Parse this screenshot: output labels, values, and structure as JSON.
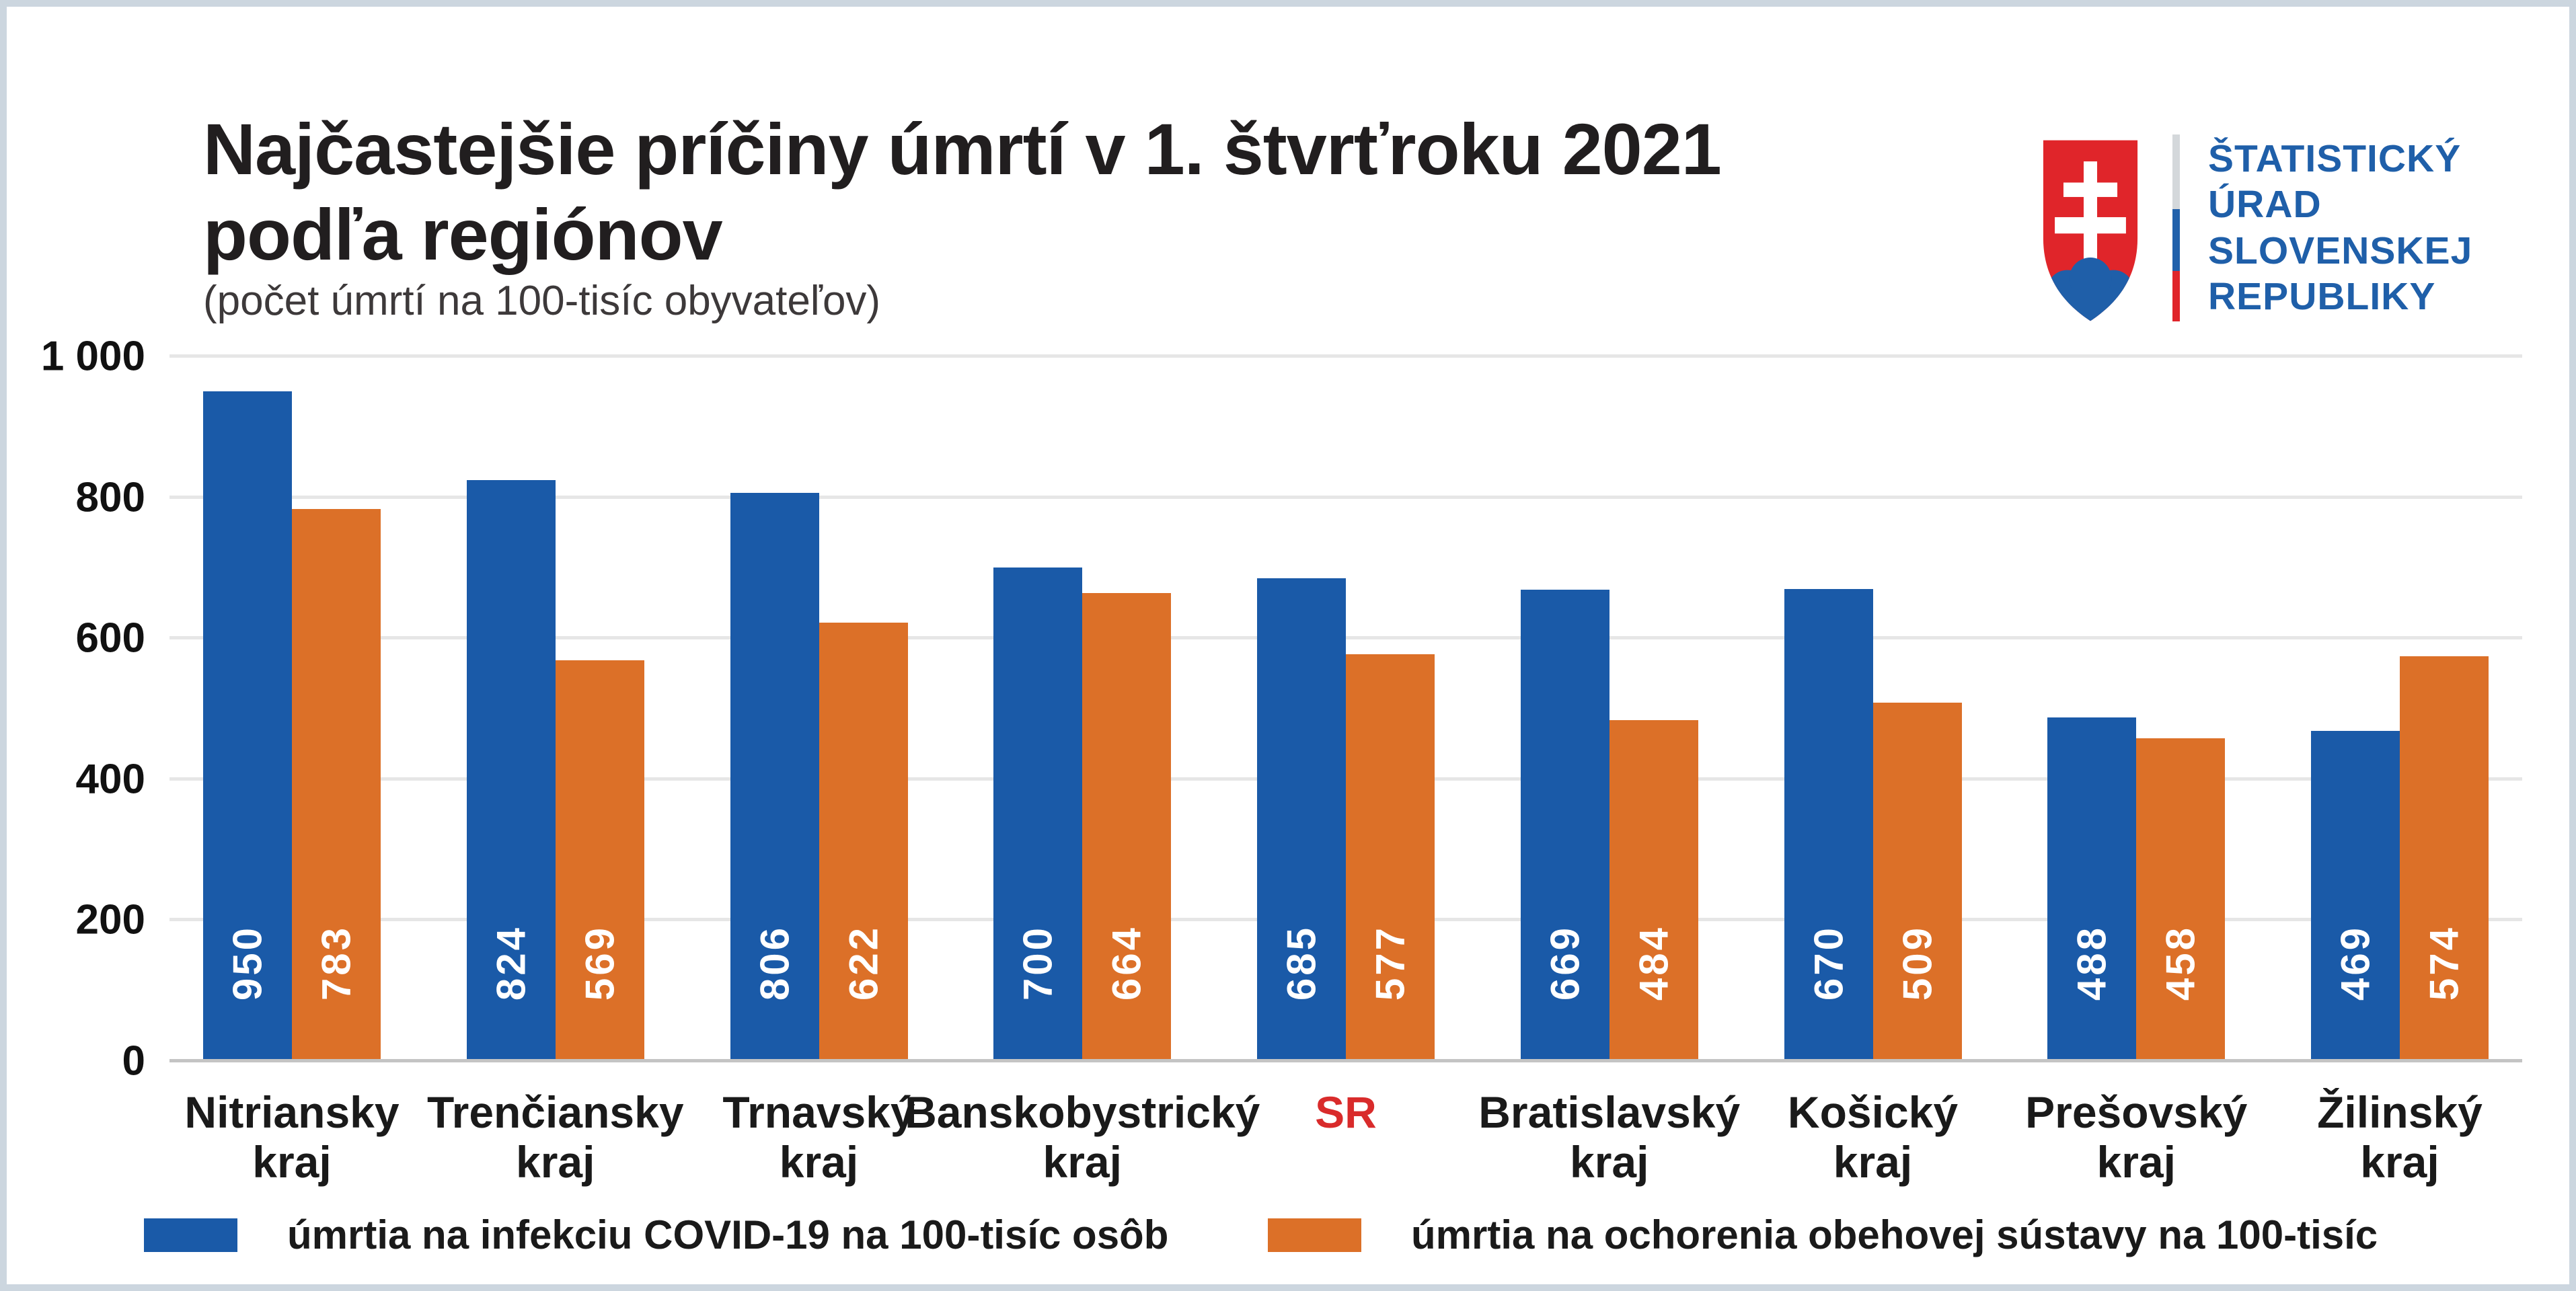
{
  "page": {
    "border_color": "#ccd6df",
    "background": "#ffffff"
  },
  "header": {
    "title_line1": "Najčastejšie príčiny úmrtí v 1. štvrťroku 2021",
    "title_line2": "podľa regiónov",
    "subtitle": "(počet úmrtí na 100-tisíc obyvateľov)"
  },
  "logo": {
    "lines": [
      "ŠTATISTICKÝ",
      "ÚRAD",
      "SLOVENSKEJ",
      "REPUBLIKY"
    ],
    "text_color": "#1f5fa9",
    "shield_red": "#e0252a",
    "shield_blue": "#1f5fa9",
    "bar_colors": [
      "#d4d8db",
      "#2161ab",
      "#e0252a"
    ]
  },
  "chart_data": {
    "type": "bar",
    "title": "Najčastejšie príčiny úmrtí v 1. štvrťroku 2021 podľa regiónov",
    "subtitle": "(počet úmrtí na 100-tisíc obyvateľov)",
    "categories": [
      "Nitriansky kraj",
      "Trenčiansky kraj",
      "Trnavský kraj",
      "Banskobystrický kraj",
      "SR",
      "Bratislavský kraj",
      "Košický kraj",
      "Prešovský kraj",
      "Žilinský kraj"
    ],
    "category_labels": [
      {
        "text": "Nitriansky\nkraj",
        "color": "#1a1a1a"
      },
      {
        "text": "Trenčiansky\nkraj",
        "color": "#1a1a1a"
      },
      {
        "text": "Trnavský\nkraj",
        "color": "#1a1a1a"
      },
      {
        "text": "Banskobystrický\nkraj",
        "color": "#1a1a1a"
      },
      {
        "text": "SR",
        "color": "#d92b2b"
      },
      {
        "text": "Bratislavský\nkraj",
        "color": "#1a1a1a"
      },
      {
        "text": "Košický\nkraj",
        "color": "#1a1a1a"
      },
      {
        "text": "Prešovský\nkraj",
        "color": "#1a1a1a"
      },
      {
        "text": "Žilinský\nkraj",
        "color": "#1a1a1a"
      }
    ],
    "series": [
      {
        "name": "úmrtia na infekciu COVID-19 na 100-tisíc osôb",
        "color": "#1a5aa8",
        "values": [
          950,
          824,
          806,
          700,
          685,
          669,
          670,
          488,
          469
        ]
      },
      {
        "name": "úmrtia na ochorenia obehovej sústavy na 100-tisíc",
        "color": "#dc7028",
        "values": [
          783,
          569,
          622,
          664,
          577,
          484,
          509,
          458,
          574
        ]
      }
    ],
    "y_axis": {
      "max": 1000,
      "ticks": [
        {
          "value": 0,
          "label": "0"
        },
        {
          "value": 200,
          "label": "200"
        },
        {
          "value": 400,
          "label": "400"
        },
        {
          "value": 600,
          "label": "600"
        },
        {
          "value": 800,
          "label": "800"
        },
        {
          "value": 1000,
          "label": "1 000"
        }
      ]
    },
    "grid": "horizontal",
    "value_labels_visible": true,
    "legend_position": "bottom"
  }
}
